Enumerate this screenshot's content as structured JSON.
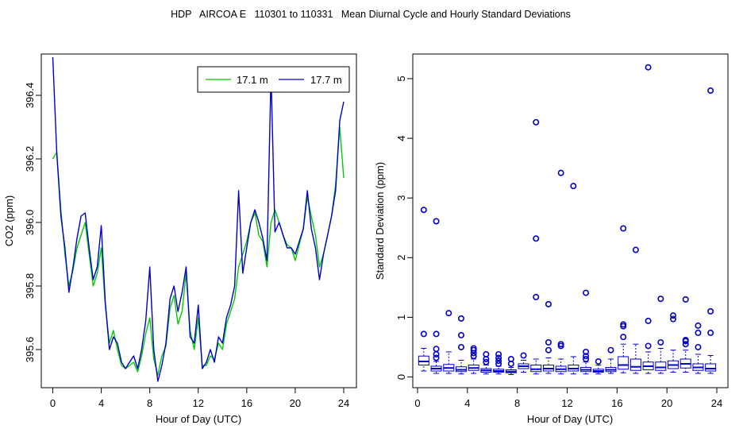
{
  "title": "HDP   AIRCOA E   110301 to 110331   Mean Diurnal Cycle and Hourly Standard Deviations",
  "chart_data": [
    {
      "type": "line",
      "xlabel": "Hour of Day (UTC)",
      "ylabel": "CO2 (ppm)",
      "xlim": [
        0,
        24
      ],
      "ylim": [
        395.48,
        396.53
      ],
      "xticks": [
        "0",
        "4",
        "8",
        "12",
        "16",
        "20",
        "24"
      ],
      "yticks": [
        "395.6",
        "395.8",
        "396.0",
        "396.2",
        "396.4"
      ],
      "legend_position": "top-right",
      "series": [
        {
          "name": "17.1 m",
          "color": "#00cc00",
          "x": [
            0,
            0.33,
            0.67,
            1,
            1.33,
            1.67,
            2,
            2.33,
            2.67,
            3,
            3.33,
            3.67,
            4,
            4.33,
            4.67,
            5,
            5.33,
            5.67,
            6,
            6.33,
            6.67,
            7,
            7.33,
            7.67,
            8,
            8.33,
            8.67,
            9,
            9.33,
            9.67,
            10,
            10.33,
            10.67,
            11,
            11.33,
            11.67,
            12,
            12.33,
            12.67,
            13,
            13.33,
            13.67,
            14,
            14.33,
            14.67,
            15,
            15.33,
            15.67,
            16,
            16.33,
            16.67,
            17,
            17.33,
            17.67,
            18,
            18.33,
            18.67,
            19,
            19.33,
            19.67,
            20,
            20.33,
            20.67,
            21,
            21.33,
            21.67,
            22,
            22.33,
            22.67,
            23,
            23.33,
            23.67,
            24
          ],
          "values": [
            396.2,
            396.22,
            396.04,
            395.9,
            395.8,
            395.85,
            395.92,
            395.96,
            396.0,
            395.9,
            395.8,
            395.84,
            395.92,
            395.74,
            395.62,
            395.66,
            395.6,
            395.55,
            395.54,
            395.55,
            395.56,
            395.53,
            395.58,
            395.65,
            395.7,
            395.57,
            395.52,
            395.58,
            395.61,
            395.73,
            395.77,
            395.68,
            395.72,
            395.84,
            395.66,
            395.6,
            395.7,
            395.55,
            395.55,
            395.58,
            395.57,
            395.62,
            395.6,
            395.68,
            395.72,
            395.76,
            395.86,
            395.9,
            395.94,
            396.0,
            396.03,
            395.96,
            395.94,
            395.86,
            396.0,
            396.04,
            396.0,
            395.96,
            395.93,
            395.92,
            395.88,
            395.93,
            395.98,
            396.08,
            396.02,
            395.96,
            395.86,
            395.9,
            395.96,
            396.02,
            396.12,
            396.3,
            396.14
          ]
        },
        {
          "name": "17.7 m",
          "color": "#0000cc",
          "x": [
            0,
            0.33,
            0.67,
            1,
            1.33,
            1.67,
            2,
            2.33,
            2.67,
            3,
            3.33,
            3.67,
            4,
            4.33,
            4.67,
            5,
            5.33,
            5.67,
            6,
            6.33,
            6.67,
            7,
            7.33,
            7.67,
            8,
            8.33,
            8.67,
            9,
            9.33,
            9.67,
            10,
            10.33,
            10.67,
            11,
            11.33,
            11.67,
            12,
            12.33,
            12.67,
            13,
            13.33,
            13.67,
            14,
            14.33,
            14.67,
            15,
            15.33,
            15.67,
            16,
            16.33,
            16.67,
            17,
            17.33,
            17.67,
            18,
            18.33,
            18.67,
            19,
            19.33,
            19.67,
            20,
            20.33,
            20.67,
            21,
            21.33,
            21.67,
            22,
            22.33,
            22.67,
            23,
            23.33,
            23.67,
            24
          ],
          "values": [
            396.52,
            396.22,
            396.02,
            395.92,
            395.78,
            395.86,
            395.95,
            396.02,
            396.03,
            395.92,
            395.82,
            395.86,
            395.99,
            395.75,
            395.6,
            395.64,
            395.62,
            395.56,
            395.54,
            395.56,
            395.58,
            395.54,
            395.6,
            395.69,
            395.86,
            395.6,
            395.5,
            395.55,
            395.62,
            395.76,
            395.8,
            395.72,
            395.78,
            395.86,
            395.64,
            395.62,
            395.74,
            395.54,
            395.56,
            395.6,
            395.56,
            395.64,
            395.62,
            395.7,
            395.74,
            395.8,
            396.1,
            395.84,
            395.92,
            396.0,
            396.04,
            396.0,
            395.95,
            395.88,
            396.47,
            395.97,
            396.0,
            395.96,
            395.92,
            395.92,
            395.9,
            395.94,
            395.98,
            396.1,
            395.98,
            395.92,
            395.82,
            395.9,
            395.96,
            396.02,
            396.1,
            396.32,
            396.38
          ]
        }
      ]
    },
    {
      "type": "box",
      "xlabel": "Hour of Day (UTC)",
      "ylabel": "Standard Deviation (ppm)",
      "xlim": [
        0,
        24
      ],
      "ylim": [
        0,
        5.2
      ],
      "xticks": [
        "0",
        "4",
        "8",
        "12",
        "16",
        "20",
        "24"
      ],
      "yticks": [
        "0",
        "1",
        "2",
        "3",
        "4",
        "5"
      ],
      "color": "#0000cc",
      "boxes": [
        {
          "hour": 0.5,
          "whisker_low": 0.1,
          "q1": 0.2,
          "median": 0.26,
          "q3": 0.35,
          "whisker_high": 0.48,
          "outliers": [
            0.72,
            2.8
          ]
        },
        {
          "hour": 1.5,
          "whisker_low": 0.06,
          "q1": 0.1,
          "median": 0.14,
          "q3": 0.18,
          "whisker_high": 0.26,
          "outliers": [
            0.32,
            0.38,
            0.47,
            0.72,
            2.61
          ]
        },
        {
          "hour": 2.5,
          "whisker_low": 0.06,
          "q1": 0.1,
          "median": 0.15,
          "q3": 0.21,
          "whisker_high": 0.42,
          "outliers": [
            1.07
          ]
        },
        {
          "hour": 3.5,
          "whisker_low": 0.05,
          "q1": 0.09,
          "median": 0.12,
          "q3": 0.17,
          "whisker_high": 0.28,
          "outliers": [
            0.5,
            0.7,
            0.98
          ]
        },
        {
          "hour": 4.5,
          "whisker_low": 0.06,
          "q1": 0.11,
          "median": 0.15,
          "q3": 0.2,
          "whisker_high": 0.3,
          "outliers": [
            0.35,
            0.4,
            0.45,
            0.48
          ]
        },
        {
          "hour": 5.5,
          "whisker_low": 0.05,
          "q1": 0.08,
          "median": 0.11,
          "q3": 0.14,
          "whisker_high": 0.2,
          "outliers": [
            0.25,
            0.3,
            0.38
          ]
        },
        {
          "hour": 6.5,
          "whisker_low": 0.05,
          "q1": 0.08,
          "median": 0.1,
          "q3": 0.13,
          "whisker_high": 0.18,
          "outliers": [
            0.22,
            0.27,
            0.32,
            0.38
          ]
        },
        {
          "hour": 7.5,
          "whisker_low": 0.04,
          "q1": 0.07,
          "median": 0.09,
          "q3": 0.12,
          "whisker_high": 0.16,
          "outliers": [
            0.22,
            0.3
          ]
        },
        {
          "hour": 8.5,
          "whisker_low": 0.08,
          "q1": 0.14,
          "median": 0.18,
          "q3": 0.22,
          "whisker_high": 0.28,
          "outliers": [
            0.36
          ]
        },
        {
          "hour": 9.5,
          "whisker_low": 0.05,
          "q1": 0.09,
          "median": 0.13,
          "q3": 0.2,
          "whisker_high": 0.3,
          "outliers": [
            1.34,
            2.32,
            4.27
          ]
        },
        {
          "hour": 10.5,
          "whisker_low": 0.06,
          "q1": 0.1,
          "median": 0.14,
          "q3": 0.2,
          "whisker_high": 0.32,
          "outliers": [
            0.45,
            0.58,
            1.22
          ]
        },
        {
          "hour": 11.5,
          "whisker_low": 0.05,
          "q1": 0.09,
          "median": 0.13,
          "q3": 0.18,
          "whisker_high": 0.3,
          "outliers": [
            0.52,
            0.55,
            3.42
          ]
        },
        {
          "hour": 12.5,
          "whisker_low": 0.05,
          "q1": 0.1,
          "median": 0.14,
          "q3": 0.2,
          "whisker_high": 0.34,
          "outliers": [
            3.2
          ]
        },
        {
          "hour": 13.5,
          "whisker_low": 0.05,
          "q1": 0.09,
          "median": 0.12,
          "q3": 0.16,
          "whisker_high": 0.25,
          "outliers": [
            0.3,
            0.35,
            0.42,
            1.41
          ]
        },
        {
          "hour": 14.5,
          "whisker_low": 0.05,
          "q1": 0.08,
          "median": 0.1,
          "q3": 0.13,
          "whisker_high": 0.2,
          "outliers": [
            0.26
          ]
        },
        {
          "hour": 15.5,
          "whisker_low": 0.06,
          "q1": 0.09,
          "median": 0.12,
          "q3": 0.16,
          "whisker_high": 0.3,
          "outliers": [
            0.45
          ]
        },
        {
          "hour": 16.5,
          "whisker_low": 0.07,
          "q1": 0.13,
          "median": 0.2,
          "q3": 0.34,
          "whisker_high": 0.55,
          "outliers": [
            0.67,
            0.85,
            0.88,
            2.49
          ]
        },
        {
          "hour": 17.5,
          "whisker_low": 0.06,
          "q1": 0.11,
          "median": 0.17,
          "q3": 0.3,
          "whisker_high": 0.55,
          "outliers": [
            2.13
          ]
        },
        {
          "hour": 18.5,
          "whisker_low": 0.06,
          "q1": 0.12,
          "median": 0.18,
          "q3": 0.25,
          "whisker_high": 0.42,
          "outliers": [
            0.52,
            0.94,
            5.19
          ]
        },
        {
          "hour": 19.5,
          "whisker_low": 0.06,
          "q1": 0.11,
          "median": 0.16,
          "q3": 0.25,
          "whisker_high": 0.48,
          "outliers": [
            0.58,
            1.31
          ]
        },
        {
          "hour": 20.5,
          "whisker_low": 0.08,
          "q1": 0.14,
          "median": 0.2,
          "q3": 0.27,
          "whisker_high": 0.45,
          "outliers": [
            0.97,
            1.03
          ]
        },
        {
          "hour": 21.5,
          "whisker_low": 0.08,
          "q1": 0.15,
          "median": 0.22,
          "q3": 0.3,
          "whisker_high": 0.45,
          "outliers": [
            0.55,
            0.6,
            0.62,
            1.3
          ]
        },
        {
          "hour": 22.5,
          "whisker_low": 0.06,
          "q1": 0.11,
          "median": 0.16,
          "q3": 0.22,
          "whisker_high": 0.38,
          "outliers": [
            0.5,
            0.74,
            0.86
          ]
        },
        {
          "hour": 23.5,
          "whisker_low": 0.06,
          "q1": 0.1,
          "median": 0.14,
          "q3": 0.22,
          "whisker_high": 0.36,
          "outliers": [
            0.74,
            1.1,
            4.8
          ]
        }
      ]
    }
  ]
}
